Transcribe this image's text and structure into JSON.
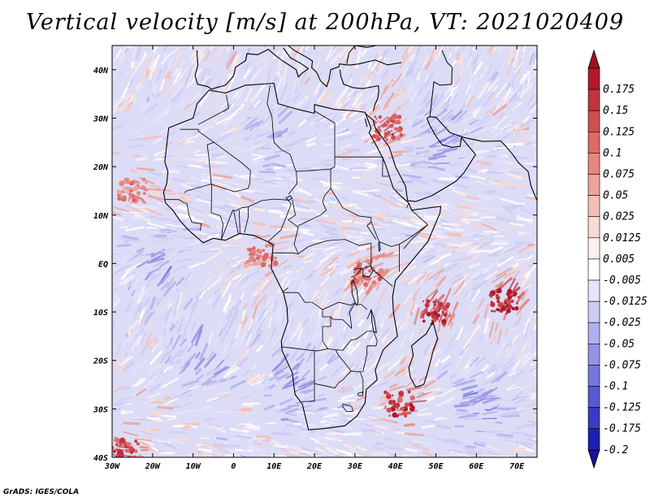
{
  "title": "Vertical velocity [m/s] at 200hPa, VT: 2021020409",
  "credit": "GrADS: IGES/COLA",
  "map": {
    "lon_range": [
      -30,
      75
    ],
    "lat_range": [
      -40,
      45
    ],
    "x_ticks": [
      {
        "lon": -30,
        "label": "30W"
      },
      {
        "lon": -20,
        "label": "20W"
      },
      {
        "lon": -10,
        "label": "10W"
      },
      {
        "lon": 0,
        "label": "0"
      },
      {
        "lon": 10,
        "label": "10E"
      },
      {
        "lon": 20,
        "label": "20E"
      },
      {
        "lon": 30,
        "label": "30E"
      },
      {
        "lon": 40,
        "label": "40E"
      },
      {
        "lon": 50,
        "label": "50E"
      },
      {
        "lon": 60,
        "label": "60E"
      },
      {
        "lon": 70,
        "label": "70E"
      }
    ],
    "y_ticks": [
      {
        "lat": 40,
        "label": "40N"
      },
      {
        "lat": 30,
        "label": "30N"
      },
      {
        "lat": 20,
        "label": "20N"
      },
      {
        "lat": 10,
        "label": "10N"
      },
      {
        "lat": 0,
        "label": "EQ"
      },
      {
        "lat": -10,
        "label": "10S"
      },
      {
        "lat": -20,
        "label": "20S"
      },
      {
        "lat": -30,
        "label": "30S"
      },
      {
        "lat": -40,
        "label": "40S"
      }
    ],
    "hotspots": [
      {
        "lon": 50,
        "lat": -10,
        "strength": 0.16
      },
      {
        "lon": 67,
        "lat": -8,
        "strength": 0.17
      },
      {
        "lon": 41,
        "lat": -29,
        "strength": 0.15
      },
      {
        "lon": 38,
        "lat": 28,
        "strength": 0.12
      },
      {
        "lon": -27,
        "lat": -39,
        "strength": 0.14
      },
      {
        "lon": 33,
        "lat": -2,
        "strength": 0.1
      },
      {
        "lon": -25,
        "lat": 15,
        "strength": 0.08
      },
      {
        "lon": 7,
        "lat": 2,
        "strength": 0.09
      }
    ],
    "coldspots": [
      {
        "lon": -20,
        "lat": 0,
        "strength": -0.07
      },
      {
        "lon": 15,
        "lat": -25,
        "strength": -0.08
      },
      {
        "lon": 50,
        "lat": 25,
        "strength": -0.07
      },
      {
        "lon": 10,
        "lat": 25,
        "strength": -0.06
      },
      {
        "lon": 60,
        "lat": -30,
        "strength": -0.07
      },
      {
        "lon": -10,
        "lat": -20,
        "strength": -0.06
      }
    ]
  },
  "colorbar": {
    "levels": [
      {
        "label": "0.175",
        "color": "#b2182b"
      },
      {
        "label": "0.15",
        "color": "#c0343d"
      },
      {
        "label": "0.125",
        "color": "#cf4f50"
      },
      {
        "label": "0.1",
        "color": "#dd6b65"
      },
      {
        "label": "0.075",
        "color": "#e6877f"
      },
      {
        "label": "0.05",
        "color": "#eea39b"
      },
      {
        "label": "0.025",
        "color": "#f4bfb8"
      },
      {
        "label": "0.0125",
        "color": "#f9dad5"
      },
      {
        "label": "0.005",
        "color": "#fdf0ee"
      },
      {
        "label": "-0.005",
        "color": "#ffffff"
      },
      {
        "label": "-0.0125",
        "color": "#e6e6fb"
      },
      {
        "label": "-0.025",
        "color": "#ccccf5"
      },
      {
        "label": "-0.05",
        "color": "#b0b0ee"
      },
      {
        "label": "-0.075",
        "color": "#9393e6"
      },
      {
        "label": "-0.1",
        "color": "#7676dc"
      },
      {
        "label": "-0.125",
        "color": "#5959d2"
      },
      {
        "label": "-0.175",
        "color": "#3a3ac4"
      },
      {
        "label": "-0.2",
        "color": "#1f1fb0"
      }
    ],
    "top_arrow_color": "#a11020",
    "bottom_arrow_color": "#1a0f9a"
  }
}
